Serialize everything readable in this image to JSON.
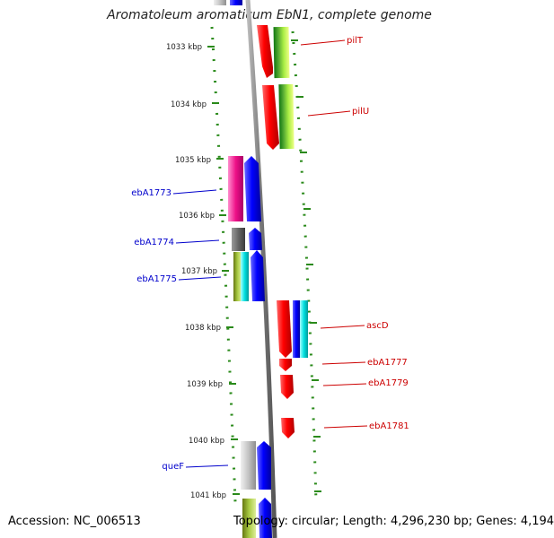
{
  "title": "Aromatoleum aromaticum EbN1, complete genome",
  "footer": {
    "accession": "Accession: NC_006513",
    "topology": "Topology: circular; Length: 4,296,230 bp; Genes: 4,194"
  },
  "scale_labels": [
    "1033 kbp",
    "1034 kbp",
    "1035 kbp",
    "1036 kbp",
    "1037 kbp",
    "1038 kbp",
    "1039 kbp",
    "1040 kbp",
    "1041 kbp"
  ],
  "gene_labels_forward": [
    "pilT",
    "pilU",
    "ascD",
    "ebA1777",
    "ebA1779",
    "ebA1781"
  ],
  "gene_labels_reverse": [
    "ebA1773",
    "ebA1774",
    "ebA1775",
    "queF"
  ],
  "colors": {
    "forward_label": "#cc0000",
    "reverse_label": "#0000cc",
    "tick": "#2a8a1a",
    "backbone": "#888888"
  }
}
